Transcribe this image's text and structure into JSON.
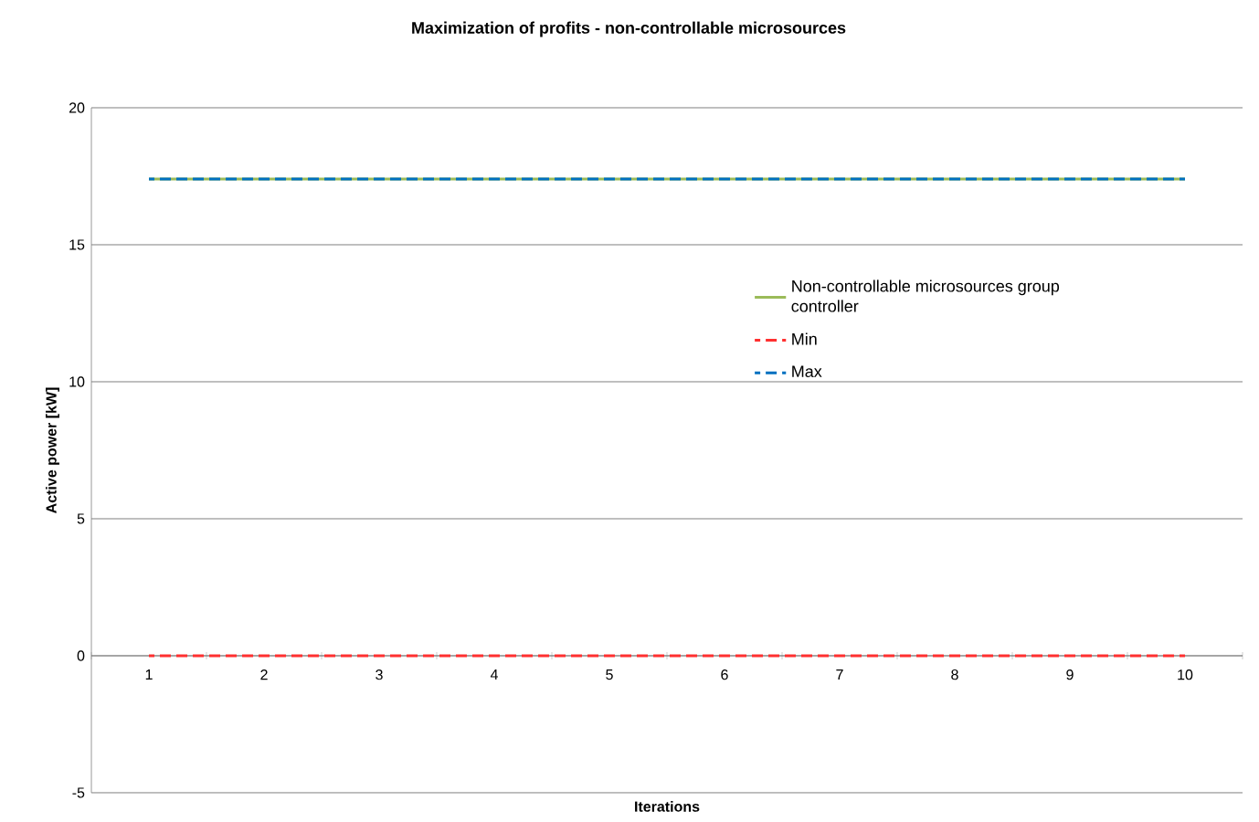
{
  "chart_data": {
    "type": "line",
    "title": "Maximization of profits - non-controllable microsources",
    "xlabel": "Iterations",
    "ylabel": "Active power [kW]",
    "categories": [
      "1",
      "2",
      "3",
      "4",
      "5",
      "6",
      "7",
      "8",
      "9",
      "10"
    ],
    "series": [
      {
        "name": "Non-controllable microsources group controller",
        "color": "#9bbb59",
        "line_style": "solid",
        "values": [
          17.4,
          17.4,
          17.4,
          17.4,
          17.4,
          17.4,
          17.4,
          17.4,
          17.4,
          17.4
        ]
      },
      {
        "name": "Min",
        "color": "#ff3030",
        "line_style": "dashed",
        "values": [
          0,
          0,
          0,
          0,
          0,
          0,
          0,
          0,
          0,
          0
        ]
      },
      {
        "name": "Max",
        "color": "#0070c0",
        "line_style": "dashed",
        "values": [
          17.4,
          17.4,
          17.4,
          17.4,
          17.4,
          17.4,
          17.4,
          17.4,
          17.4,
          17.4
        ]
      }
    ],
    "ylim": [
      -5,
      20
    ],
    "yticks": [
      -5,
      0,
      5,
      10,
      15,
      20
    ],
    "grid": "y",
    "legend": "right"
  }
}
